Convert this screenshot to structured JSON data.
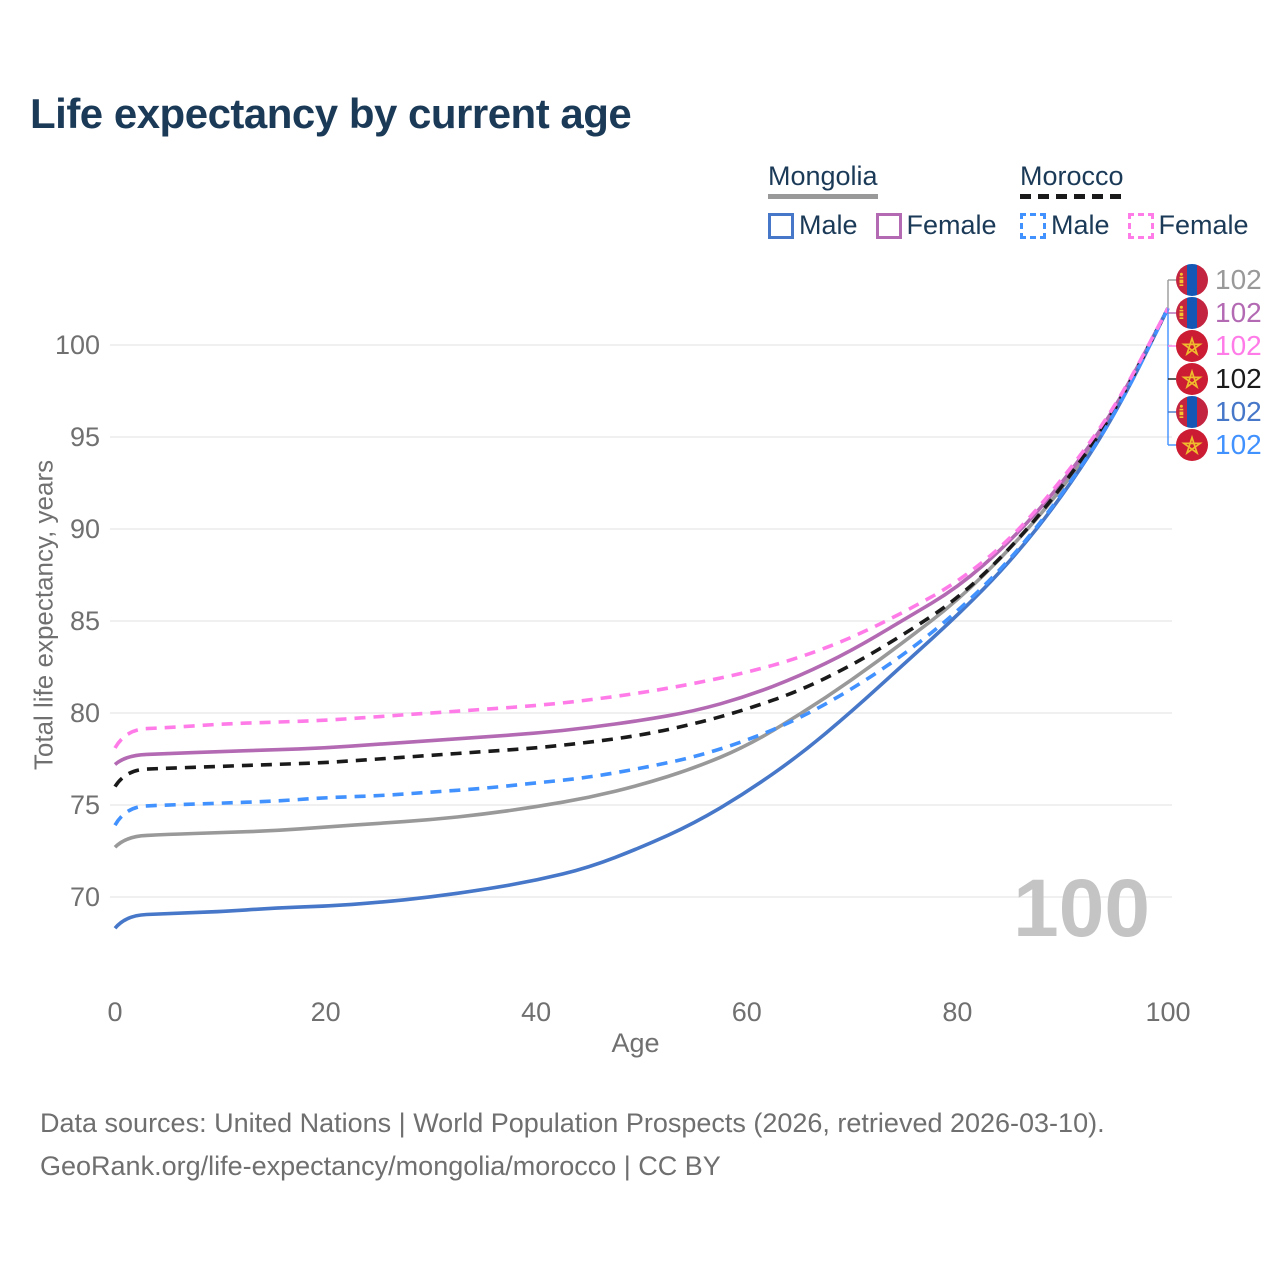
{
  "page": {
    "title": "Life expectancy by current age"
  },
  "legend": {
    "groups": [
      {
        "name": "Mongolia",
        "line_style": "solid",
        "line_color": "#999999",
        "items": [
          {
            "label": "Male",
            "color": "#4677c8",
            "dashed": false
          },
          {
            "label": "Female",
            "color": "#b36ab3",
            "dashed": false
          }
        ]
      },
      {
        "name": "Morocco",
        "line_style": "dashed",
        "line_color": "#1a1a1a",
        "items": [
          {
            "label": "Male",
            "color": "#4191ff",
            "dashed": true
          },
          {
            "label": "Female",
            "color": "#ff7ce8",
            "dashed": true
          }
        ]
      }
    ]
  },
  "chart_data": {
    "type": "line",
    "title": "Life expectancy by current age",
    "xlabel": "Age",
    "ylabel": "Total life expectancy, years",
    "x_ticks": [
      0,
      20,
      40,
      60,
      80,
      100
    ],
    "y_ticks": [
      70,
      75,
      80,
      85,
      90,
      95,
      100
    ],
    "xlim": [
      0,
      100
    ],
    "ylim": [
      67.5,
      103
    ],
    "grid": "horizontal-only",
    "gridline_color": "#e7e7e7",
    "x": [
      0,
      1,
      5,
      10,
      15,
      20,
      25,
      30,
      35,
      40,
      45,
      50,
      55,
      60,
      65,
      70,
      75,
      80,
      85,
      90,
      95,
      100
    ],
    "series": [
      {
        "name": "Mongolia Both sexes",
        "country": "Mongolia",
        "sex": "both",
        "color": "#999999",
        "dashed": false,
        "end_label": "102",
        "values": [
          72.7,
          73.3,
          73.4,
          73.5,
          73.6,
          73.8,
          74.0,
          74.2,
          74.5,
          74.9,
          75.4,
          76.1,
          77.0,
          78.2,
          79.9,
          81.8,
          83.9,
          86.1,
          88.9,
          92.2,
          96.3,
          102
        ]
      },
      {
        "name": "Mongolia Female",
        "country": "Mongolia",
        "sex": "female",
        "color": "#b36ab3",
        "dashed": false,
        "end_label": "102",
        "values": [
          77.2,
          77.7,
          77.8,
          77.9,
          78.0,
          78.1,
          78.3,
          78.5,
          78.7,
          78.9,
          79.2,
          79.6,
          80.1,
          80.9,
          82.0,
          83.4,
          85.1,
          86.8,
          89.3,
          92.5,
          96.5,
          102
        ]
      },
      {
        "name": "Mongolia Male",
        "country": "Mongolia",
        "sex": "male",
        "color": "#4677c8",
        "dashed": false,
        "end_label": "102",
        "values": [
          68.3,
          69.0,
          69.1,
          69.2,
          69.4,
          69.5,
          69.7,
          70.0,
          70.4,
          70.9,
          71.6,
          72.7,
          74.0,
          75.7,
          77.7,
          80.1,
          82.7,
          85.3,
          88.2,
          91.8,
          96.2,
          102
        ]
      },
      {
        "name": "Morocco Both sexes",
        "country": "Morocco",
        "sex": "both",
        "color": "#1a1a1a",
        "dashed": true,
        "end_label": "102",
        "values": [
          76.0,
          76.9,
          77.0,
          77.1,
          77.2,
          77.3,
          77.5,
          77.7,
          77.9,
          78.1,
          78.4,
          78.8,
          79.4,
          80.2,
          81.2,
          82.6,
          84.3,
          86.2,
          88.9,
          92.3,
          96.4,
          102
        ]
      },
      {
        "name": "Morocco Male",
        "country": "Morocco",
        "sex": "male",
        "color": "#4191ff",
        "dashed": true,
        "end_label": "102",
        "values": [
          73.9,
          74.9,
          75.0,
          75.1,
          75.2,
          75.4,
          75.5,
          75.7,
          75.9,
          76.2,
          76.5,
          77.0,
          77.6,
          78.5,
          79.7,
          81.3,
          83.2,
          85.5,
          88.3,
          91.9,
          96.2,
          102
        ]
      },
      {
        "name": "Morocco Female",
        "country": "Morocco",
        "sex": "female",
        "color": "#ff7ce8",
        "dashed": true,
        "end_label": "102",
        "values": [
          78.1,
          79.1,
          79.2,
          79.4,
          79.5,
          79.6,
          79.8,
          80.0,
          80.2,
          80.4,
          80.7,
          81.1,
          81.6,
          82.2,
          83.0,
          84.1,
          85.5,
          87.1,
          89.4,
          92.7,
          96.6,
          102
        ]
      }
    ],
    "legend_position": "top-right",
    "annotations": {
      "watermark_frame": "100"
    }
  },
  "end_labels": [
    {
      "flag": "mongolia",
      "value": "102",
      "color": "#999999"
    },
    {
      "flag": "mongolia",
      "value": "102",
      "color": "#b36ab3"
    },
    {
      "flag": "morocco",
      "value": "102",
      "color": "#ff7ce8"
    },
    {
      "flag": "morocco",
      "value": "102",
      "color": "#1a1a1a"
    },
    {
      "flag": "mongolia",
      "value": "102",
      "color": "#4677c8"
    },
    {
      "flag": "morocco",
      "value": "102",
      "color": "#4191ff"
    }
  ],
  "flag_colors": {
    "mongolia": {
      "red": "#c32440",
      "blue": "#1457b5",
      "emblem": "#f4c430"
    },
    "morocco": {
      "red": "#cc1c33",
      "star": "#eebc2c"
    }
  },
  "watermark": "100",
  "footer": {
    "line1": "Data sources: United Nations | World Population Prospects (2026, retrieved 2026-03-10).",
    "line2": "GeoRank.org/life-expectancy/mongolia/morocco | CC BY"
  }
}
